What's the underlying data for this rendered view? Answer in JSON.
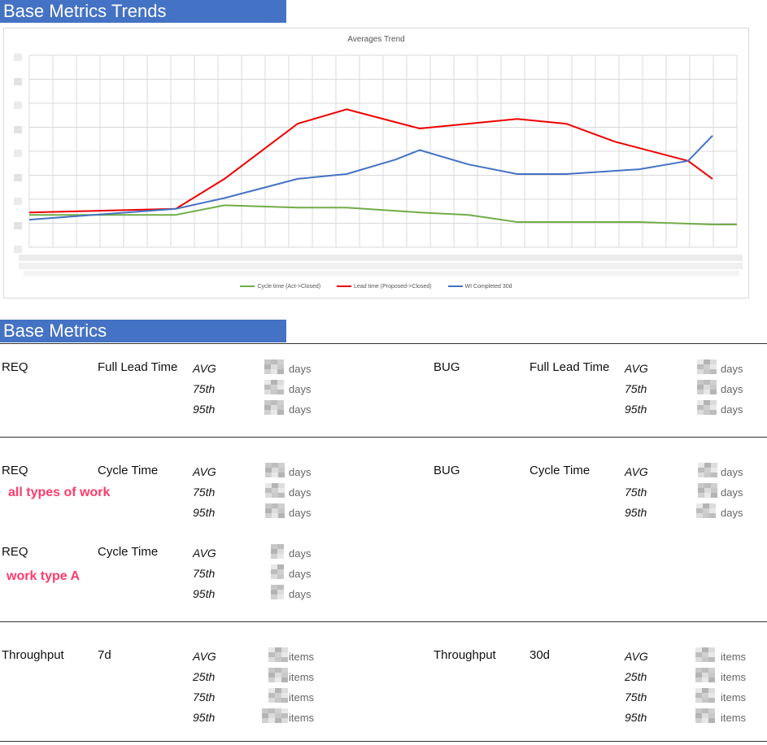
{
  "header": {
    "trend_title": "Base Metrics Trends",
    "metrics_title": "Base Metrics"
  },
  "chart_data": {
    "type": "line",
    "title": "Averages Trend",
    "xlabel": "",
    "ylabel": "",
    "x": [
      1,
      2,
      3,
      4,
      5,
      6,
      7,
      8,
      9,
      10,
      11,
      12,
      13,
      14,
      15,
      16,
      17,
      18,
      19,
      20,
      21,
      22,
      23,
      24,
      25,
      26,
      27,
      28,
      29,
      30
    ],
    "grid": true,
    "legend_position": "bottom",
    "series": [
      {
        "name": "Cycle time (Act->Closed)",
        "color": "#70ad47",
        "points": [
          [
            1,
            0.35
          ],
          [
            7,
            0.35
          ],
          [
            9,
            0.75
          ],
          [
            12,
            0.65
          ],
          [
            14,
            0.65
          ],
          [
            17,
            0.45
          ],
          [
            19,
            0.35
          ],
          [
            21,
            0.05
          ],
          [
            24,
            0.05
          ],
          [
            26,
            0.05
          ],
          [
            29,
            -0.05
          ],
          [
            30,
            -0.05
          ]
        ]
      },
      {
        "name": "Lead time (Proposed->Closed)",
        "color": "#ee0000",
        "points": [
          [
            1,
            0.45
          ],
          [
            7,
            0.6
          ],
          [
            9,
            1.85
          ],
          [
            12,
            4.15
          ],
          [
            14,
            4.75
          ],
          [
            17,
            3.95
          ],
          [
            19,
            4.15
          ],
          [
            21,
            4.35
          ],
          [
            23,
            4.15
          ],
          [
            25,
            3.4
          ],
          [
            28,
            2.6
          ],
          [
            29,
            1.85
          ]
        ]
      },
      {
        "name": "WI Completed 30d",
        "color": "#4472c4",
        "points": [
          [
            1,
            0.15
          ],
          [
            7,
            0.6
          ],
          [
            9,
            1.05
          ],
          [
            12,
            1.85
          ],
          [
            14,
            2.05
          ],
          [
            16,
            2.65
          ],
          [
            17,
            3.05
          ],
          [
            19,
            2.45
          ],
          [
            21,
            2.05
          ],
          [
            23,
            2.05
          ],
          [
            26,
            2.25
          ],
          [
            28,
            2.6
          ],
          [
            29,
            3.65
          ]
        ]
      }
    ]
  },
  "metrics": {
    "groups": [
      {
        "left": {
          "category": "REQ",
          "metric": "Full Lead Time",
          "unit": "days",
          "stats": [
            "AVG",
            "75th",
            "95th"
          ]
        },
        "right": {
          "category": "BUG",
          "metric": "Full Lead Time",
          "unit": "days",
          "stats": [
            "AVG",
            "75th",
            "95th"
          ]
        }
      },
      {
        "left": {
          "category": "REQ",
          "metric": "Cycle Time",
          "annotation": "all types of work",
          "unit": "days",
          "stats": [
            "AVG",
            "75th",
            "95th"
          ]
        },
        "right": {
          "category": "BUG",
          "metric": "Cycle Time",
          "unit": "days",
          "stats": [
            "AVG",
            "75th",
            "95th"
          ]
        }
      },
      {
        "left": {
          "category": "REQ",
          "metric": "Cycle Time",
          "annotation": "work type A",
          "unit": "days",
          "stats": [
            "AVG",
            "75th",
            "95th"
          ]
        }
      },
      {
        "left": {
          "category": "Throughput",
          "metric": "7d",
          "unit": "items",
          "stats": [
            "AVG",
            "25th",
            "75th",
            "95th"
          ]
        },
        "right": {
          "category": "Throughput",
          "metric": "30d",
          "unit": "items",
          "stats": [
            "AVG",
            "25th",
            "75th",
            "95th"
          ]
        }
      }
    ]
  }
}
